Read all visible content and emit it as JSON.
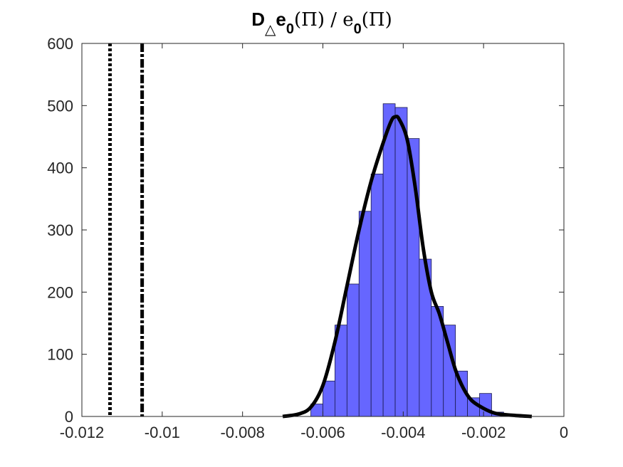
{
  "chart_data": {
    "type": "bar",
    "title": {
      "parts": [
        {
          "t": "D",
          "sub": false
        },
        {
          "t": "△",
          "sub": true
        },
        {
          "t": "e",
          "sub": false
        },
        {
          "t": "0",
          "sub": true
        },
        {
          "t": "(Π) / e",
          "sub": false
        },
        {
          "t": "0",
          "sub": true
        },
        {
          "t": "(Π)",
          "sub": false
        }
      ]
    },
    "xlabel": "",
    "ylabel": "",
    "xlim": [
      -0.012,
      0
    ],
    "ylim": [
      0,
      600
    ],
    "grid": false,
    "x_ticks": [
      {
        "value": -0.012,
        "label": "-0.012"
      },
      {
        "value": -0.01,
        "label": "-0.01"
      },
      {
        "value": -0.008,
        "label": "-0.008"
      },
      {
        "value": -0.006,
        "label": "-0.006"
      },
      {
        "value": -0.004,
        "label": "-0.004"
      },
      {
        "value": -0.002,
        "label": "-0.002"
      },
      {
        "value": 0,
        "label": "0"
      }
    ],
    "y_ticks": [
      {
        "value": 0,
        "label": "0"
      },
      {
        "value": 100,
        "label": "100"
      },
      {
        "value": 200,
        "label": "200"
      },
      {
        "value": 300,
        "label": "300"
      },
      {
        "value": 400,
        "label": "400"
      },
      {
        "value": 500,
        "label": "500"
      },
      {
        "value": 600,
        "label": "600"
      }
    ],
    "histogram": {
      "color": "#6666ff",
      "edge_color": "#1a1a4d",
      "bins": [
        {
          "x0": -0.0063,
          "x1": -0.006,
          "count": 20
        },
        {
          "x0": -0.006,
          "x1": -0.0057,
          "count": 57
        },
        {
          "x0": -0.0057,
          "x1": -0.0054,
          "count": 147
        },
        {
          "x0": -0.0054,
          "x1": -0.0051,
          "count": 213
        },
        {
          "x0": -0.0051,
          "x1": -0.0048,
          "count": 330
        },
        {
          "x0": -0.0048,
          "x1": -0.0045,
          "count": 390
        },
        {
          "x0": -0.0045,
          "x1": -0.0042,
          "count": 503
        },
        {
          "x0": -0.0042,
          "x1": -0.0039,
          "count": 497
        },
        {
          "x0": -0.0039,
          "x1": -0.0036,
          "count": 447
        },
        {
          "x0": -0.0036,
          "x1": -0.0033,
          "count": 253
        },
        {
          "x0": -0.0033,
          "x1": -0.003,
          "count": 177
        },
        {
          "x0": -0.003,
          "x1": -0.0027,
          "count": 147
        },
        {
          "x0": -0.0027,
          "x1": -0.0024,
          "count": 73
        },
        {
          "x0": -0.0024,
          "x1": -0.0021,
          "count": 30
        },
        {
          "x0": -0.0021,
          "x1": -0.0018,
          "count": 37
        },
        {
          "x0": -0.0018,
          "x1": -0.0015,
          "count": 7
        },
        {
          "x0": -0.0015,
          "x1": -0.0012,
          "count": 3
        }
      ]
    },
    "density_curve": {
      "color": "#000000",
      "points": [
        [
          -0.007,
          0
        ],
        [
          -0.0066,
          4
        ],
        [
          -0.0063,
          15
        ],
        [
          -0.006,
          50
        ],
        [
          -0.0057,
          120
        ],
        [
          -0.0054,
          210
        ],
        [
          -0.0051,
          300
        ],
        [
          -0.0048,
          378
        ],
        [
          -0.0045,
          440
        ],
        [
          -0.0043,
          475
        ],
        [
          -0.0042,
          482
        ],
        [
          -0.0041,
          478
        ],
        [
          -0.0039,
          445
        ],
        [
          -0.0037,
          368
        ],
        [
          -0.0035,
          270
        ],
        [
          -0.0033,
          200
        ],
        [
          -0.0031,
          165
        ],
        [
          -0.0029,
          120
        ],
        [
          -0.0027,
          75
        ],
        [
          -0.0025,
          45
        ],
        [
          -0.0023,
          26
        ],
        [
          -0.002,
          13
        ],
        [
          -0.0017,
          5
        ],
        [
          -0.0013,
          2
        ],
        [
          -0.0008,
          0
        ]
      ]
    },
    "reference_lines": [
      {
        "x": -0.0113,
        "style": "dotted",
        "color": "#000000"
      },
      {
        "x": -0.0105,
        "style": "dashdot",
        "color": "#000000"
      }
    ]
  }
}
